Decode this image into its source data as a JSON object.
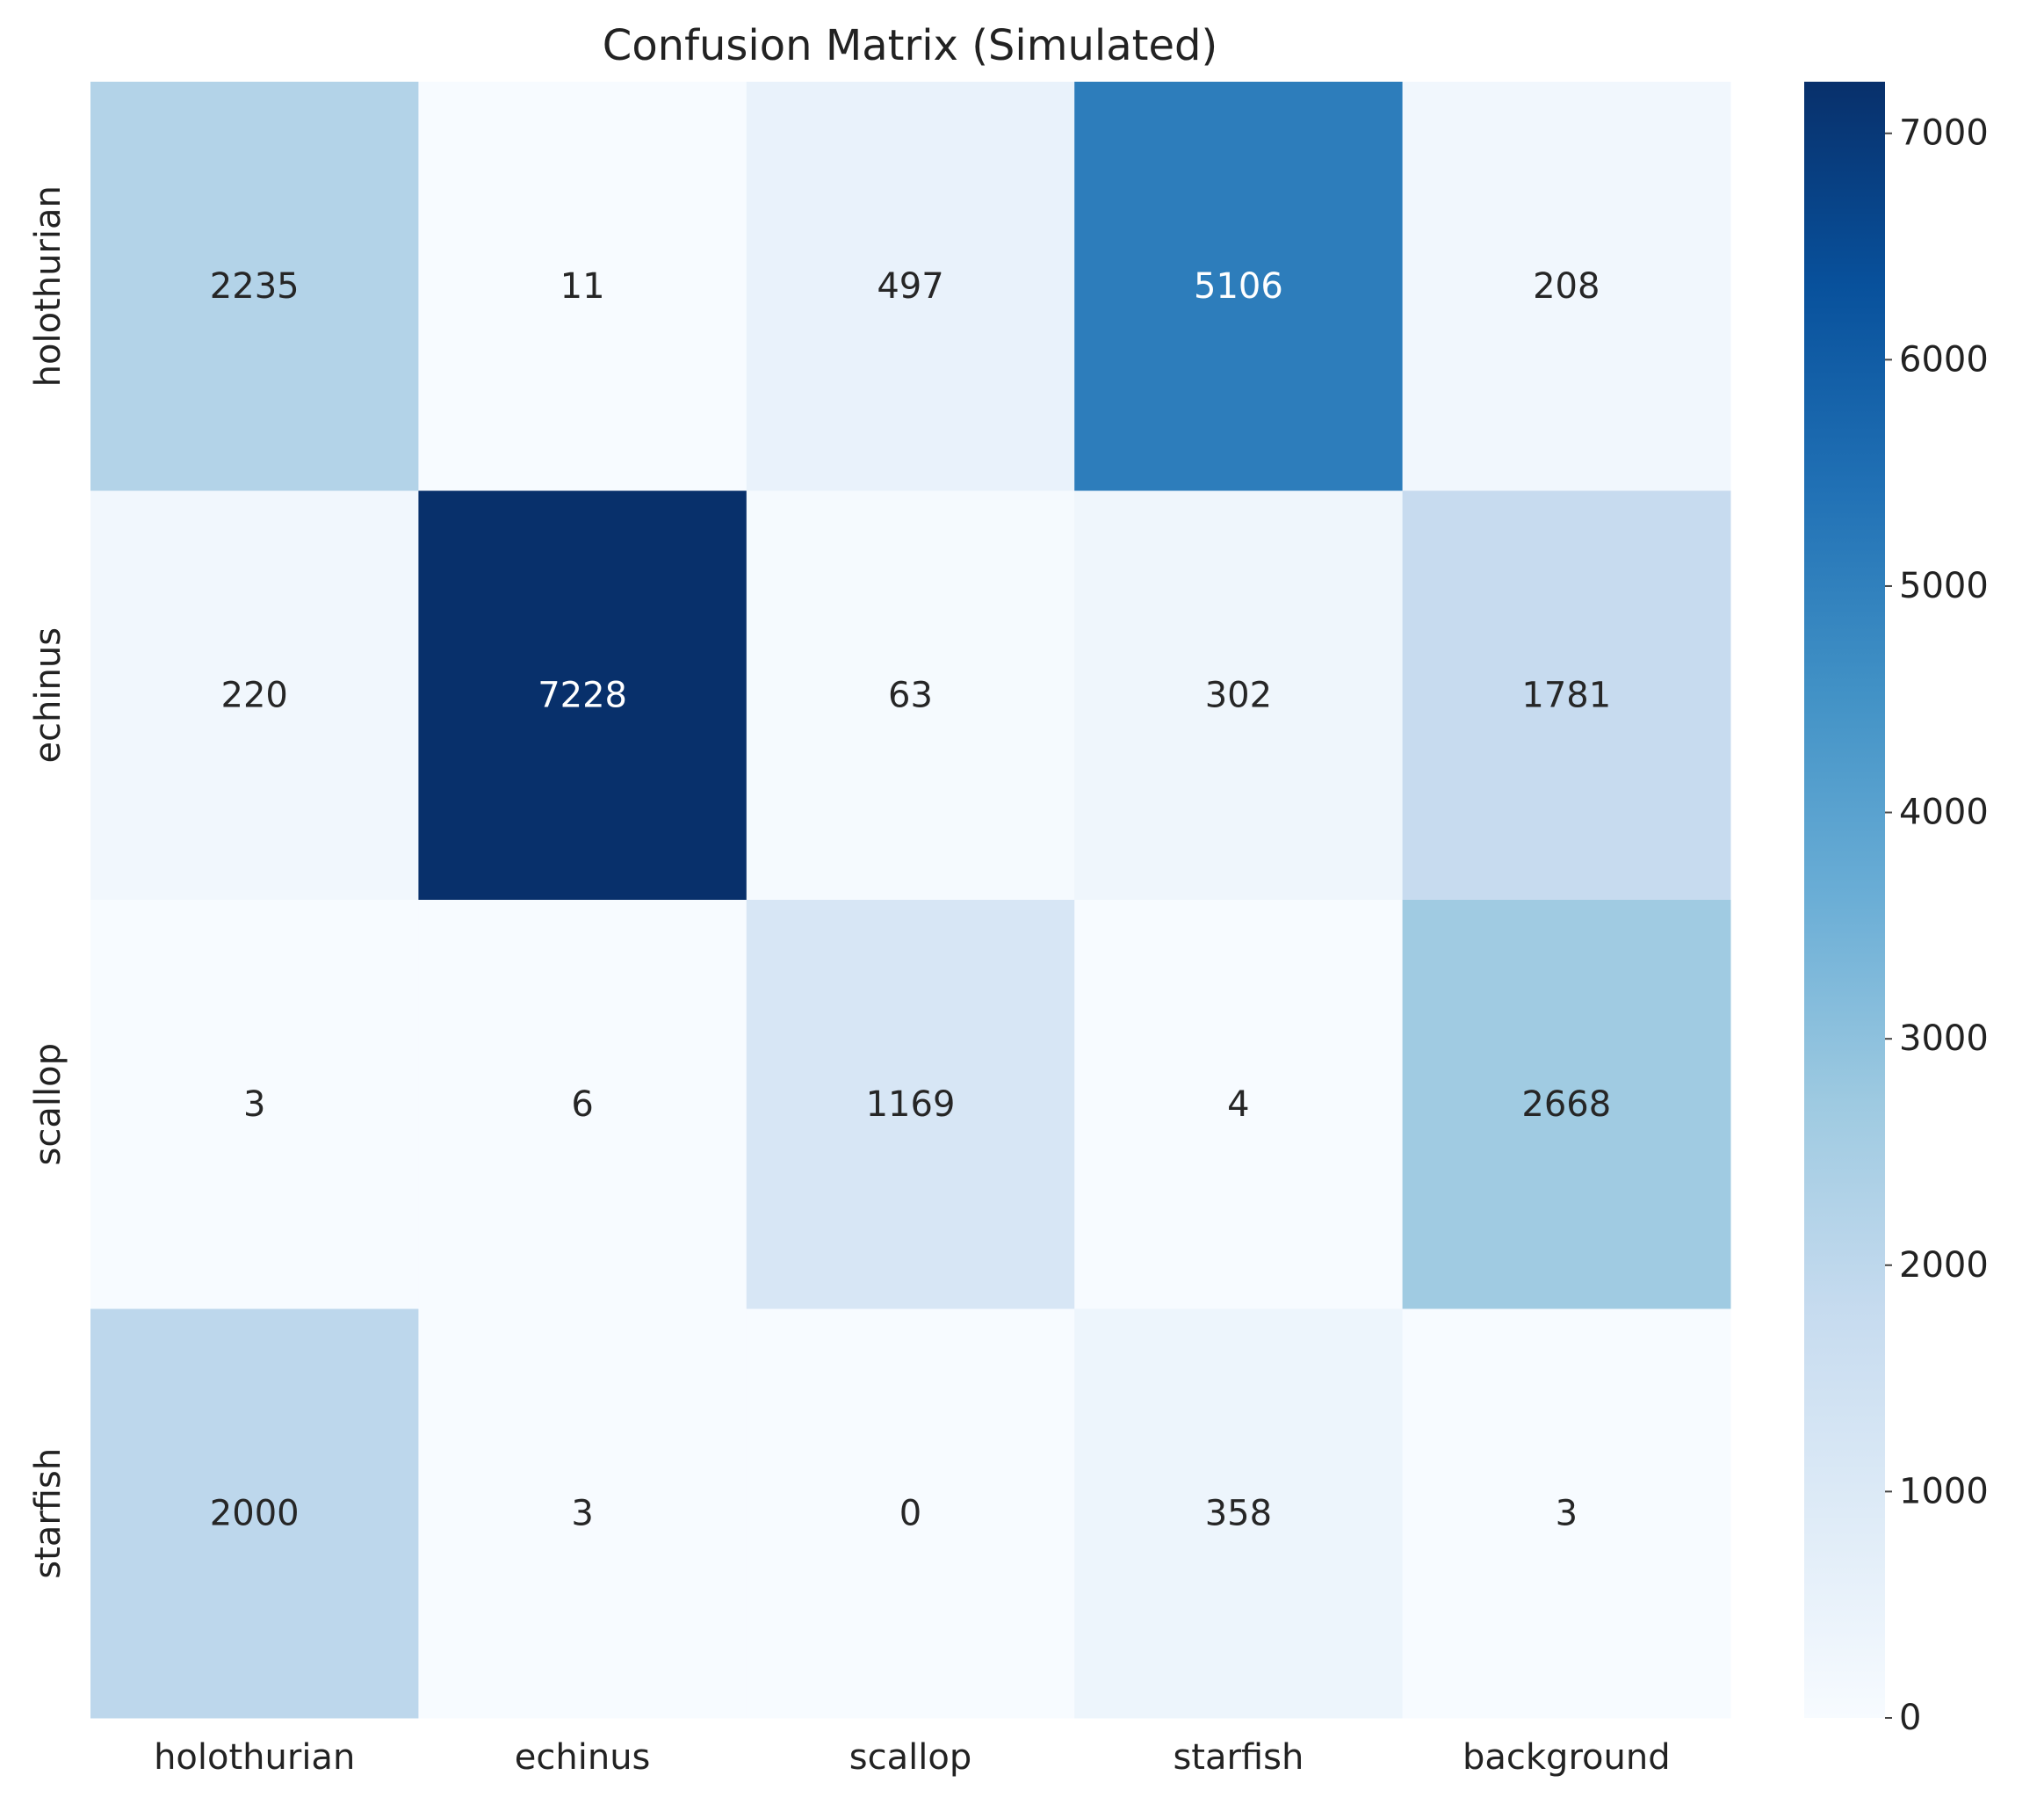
{
  "chart_data": {
    "type": "heatmap",
    "title": "Confusion Matrix (Simulated)",
    "xlabel": "",
    "ylabel": "",
    "x_categories": [
      "holothurian",
      "echinus",
      "scallop",
      "starfish",
      "background"
    ],
    "y_categories": [
      "holothurian",
      "echinus",
      "scallop",
      "starfish"
    ],
    "values": [
      [
        2235,
        11,
        497,
        5106,
        208
      ],
      [
        220,
        7228,
        63,
        302,
        1781
      ],
      [
        3,
        6,
        1169,
        4,
        2668
      ],
      [
        2000,
        3,
        0,
        358,
        3
      ]
    ],
    "colormap": "Blues",
    "colormap_stops": [
      "#f7fbff",
      "#deebf7",
      "#c6dbef",
      "#9ecae1",
      "#6baed6",
      "#4292c6",
      "#2171b5",
      "#08519c",
      "#08306b"
    ],
    "vmin": 0,
    "vmax": 7228,
    "colorbar": {
      "ticks": [
        0,
        1000,
        2000,
        3000,
        4000,
        5000,
        6000,
        7000
      ],
      "placement": "right"
    },
    "annotation_colors": {
      "light_background": "#262626",
      "dark_background": "#ffffff"
    },
    "grid": false
  }
}
